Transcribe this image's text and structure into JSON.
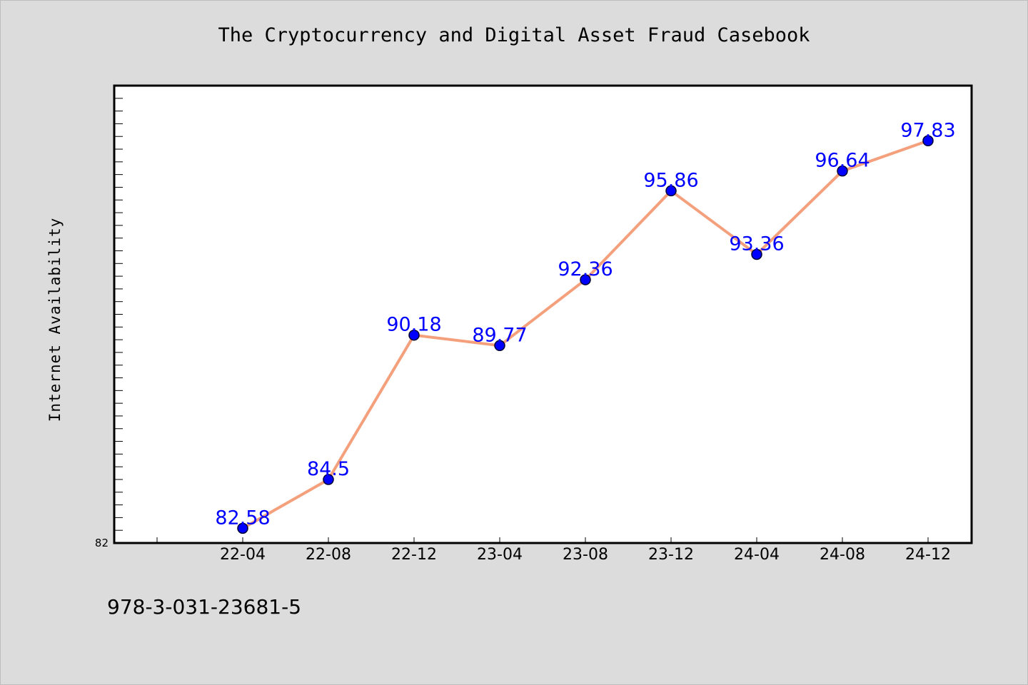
{
  "chart_data": {
    "type": "line",
    "title": "The Cryptocurrency and Digital Asset Fraud Casebook",
    "ylabel": "Internet Availability",
    "xlabel": "",
    "categories": [
      "22-04",
      "22-08",
      "22-12",
      "23-04",
      "23-08",
      "23-12",
      "24-04",
      "24-08",
      "24-12"
    ],
    "series": [
      {
        "values": [
          82.58,
          84.5,
          90.18,
          89.77,
          92.36,
          95.86,
          93.36,
          96.64,
          97.83
        ]
      }
    ],
    "ylim": [
      82,
      100
    ],
    "y_tick_labels": [
      "82"
    ],
    "grid": false,
    "colors": {
      "line": "#f4a07c",
      "marker": "#0000ff",
      "data_label": "#0000ff",
      "plot_bg": "#ffffff",
      "page_bg": "#dcdcdc"
    }
  },
  "footer": {
    "isbn": "978-3-031-23681-5"
  }
}
